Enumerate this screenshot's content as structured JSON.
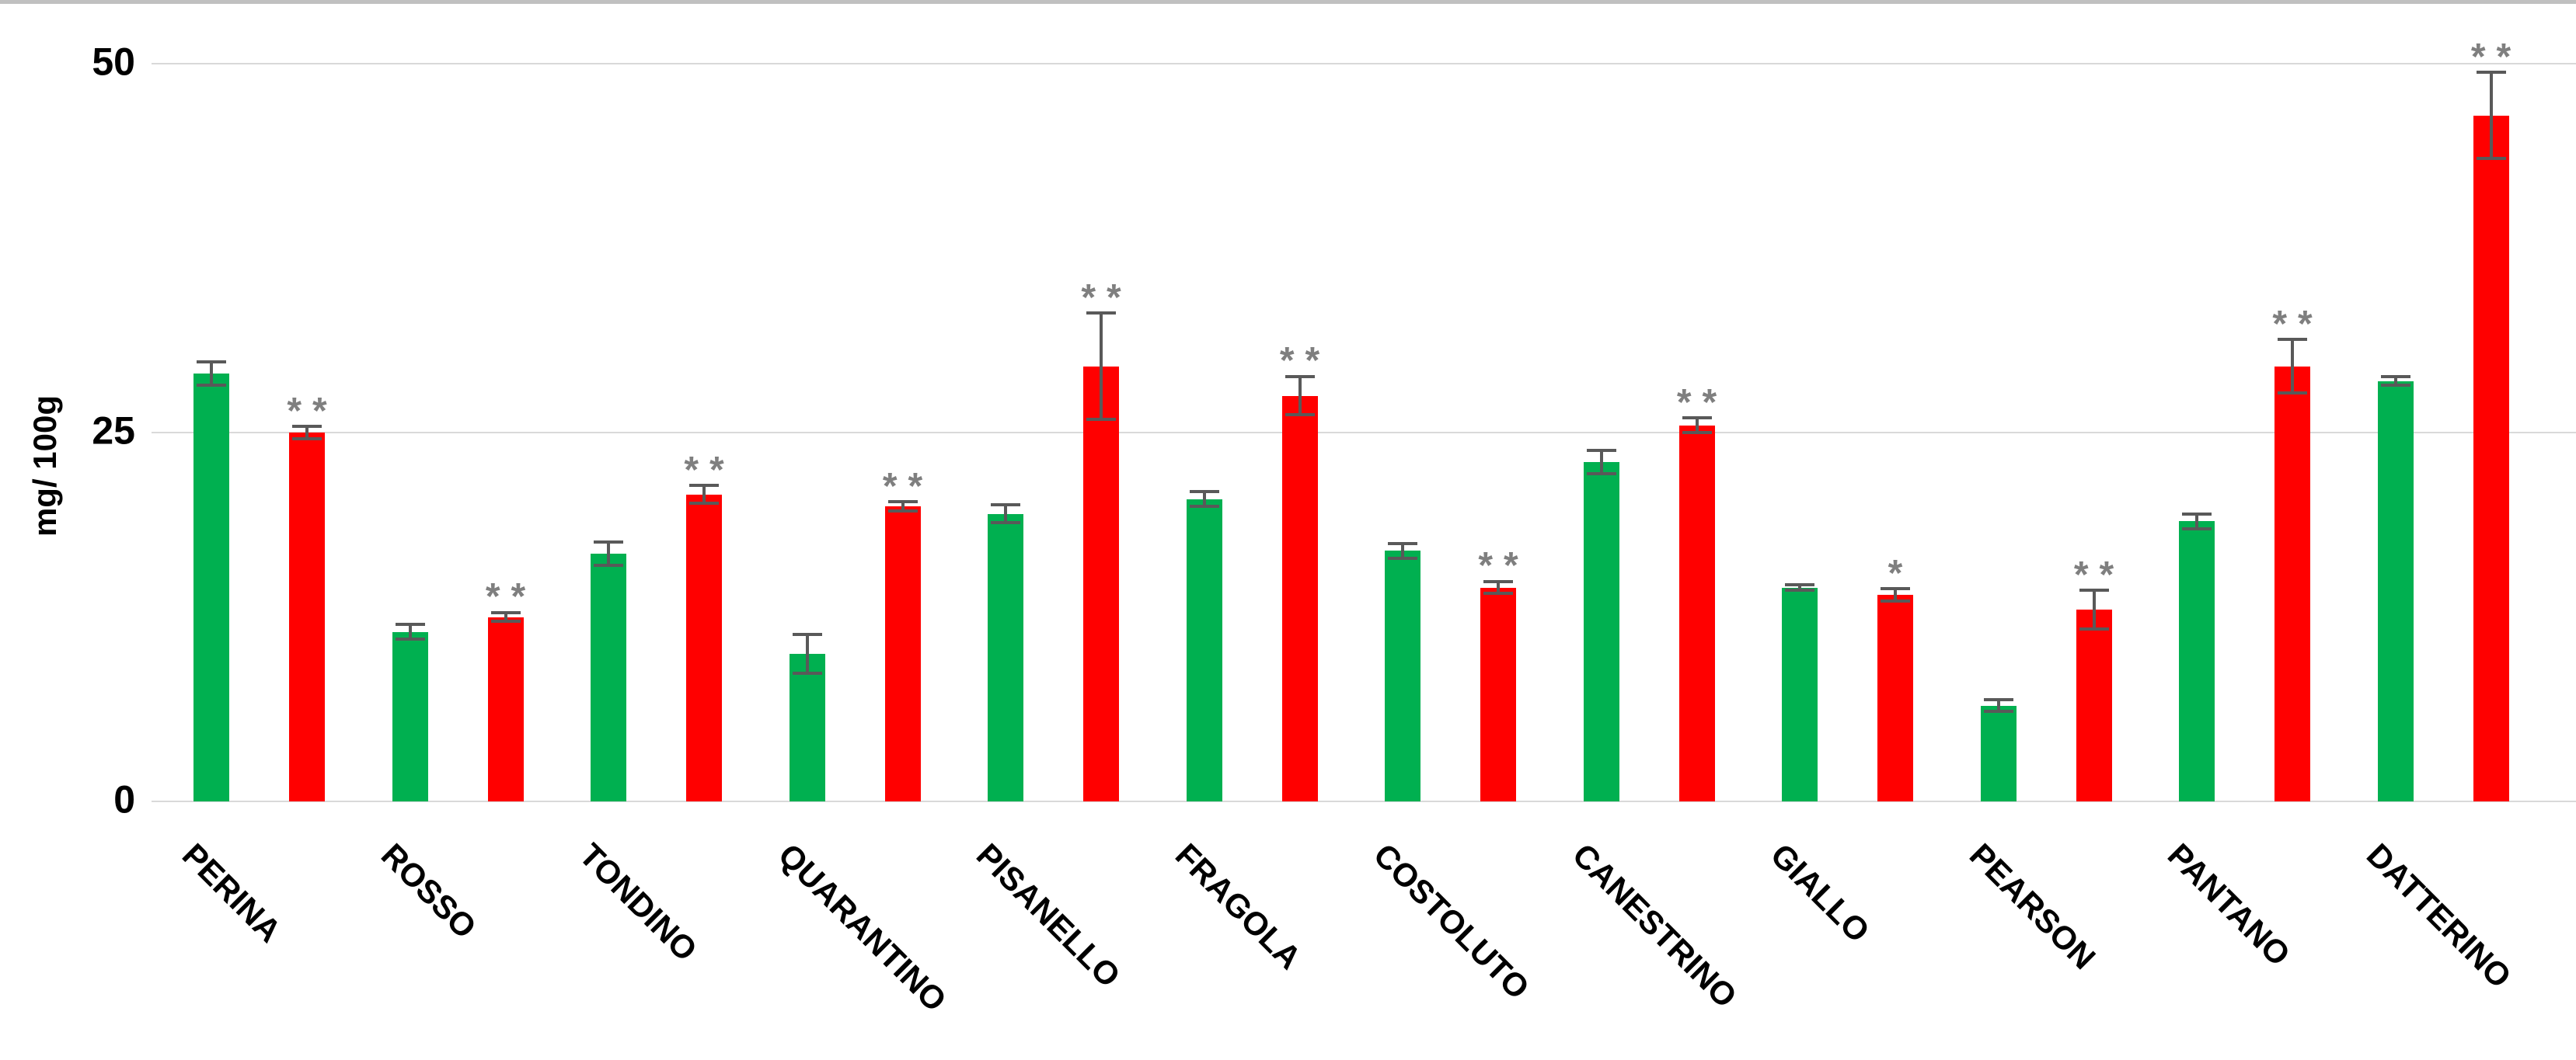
{
  "figure": {
    "background_color": "#FFFFFF",
    "top_border_color": "#C0C0C0"
  },
  "chart_data": {
    "type": "bar",
    "title": "",
    "xlabel": "",
    "ylabel": "mg/ 100g",
    "ylim": [
      0,
      50
    ],
    "yticks": [
      0,
      25,
      50
    ],
    "ytick_labels": [
      "0",
      "25",
      "50"
    ],
    "grid": "horizontal",
    "gridline_color": "#D9D9D9",
    "error_bar_color": "#595959",
    "significance_color": "#7F7F7F",
    "legend_position": "none",
    "categories": [
      "PERINA",
      "ROSSO",
      "TONDINO",
      "QUARANTINO",
      "PISANELLO",
      "FRAGOLA",
      "COSTOLUTO",
      "CANESTRINO",
      "GIALLO",
      "PEARSON",
      "PANTANO",
      "DATTERINO"
    ],
    "series": [
      {
        "name": "green",
        "color": "#00B050",
        "values": [
          29.0,
          11.5,
          16.8,
          10.0,
          19.5,
          20.5,
          17.0,
          23.0,
          14.5,
          6.5,
          19.0,
          28.5
        ],
        "errors": [
          0.8,
          0.5,
          0.8,
          1.3,
          0.6,
          0.5,
          0.5,
          0.8,
          0.2,
          0.4,
          0.5,
          0.3
        ],
        "significance": [
          "",
          "",
          "",
          "",
          "",
          "",
          "",
          "",
          "",
          "",
          "",
          ""
        ]
      },
      {
        "name": "red",
        "color": "#FF0000",
        "values": [
          25.0,
          12.5,
          20.8,
          20.0,
          29.5,
          27.5,
          14.5,
          25.5,
          14.0,
          13.0,
          29.5,
          46.5
        ],
        "errors": [
          0.4,
          0.3,
          0.6,
          0.3,
          3.6,
          1.3,
          0.4,
          0.5,
          0.4,
          1.3,
          1.8,
          2.9
        ],
        "significance": [
          "**",
          "**",
          "**",
          "**",
          "**",
          "**",
          "**",
          "**",
          "*",
          "**",
          "**",
          "**"
        ]
      }
    ]
  }
}
